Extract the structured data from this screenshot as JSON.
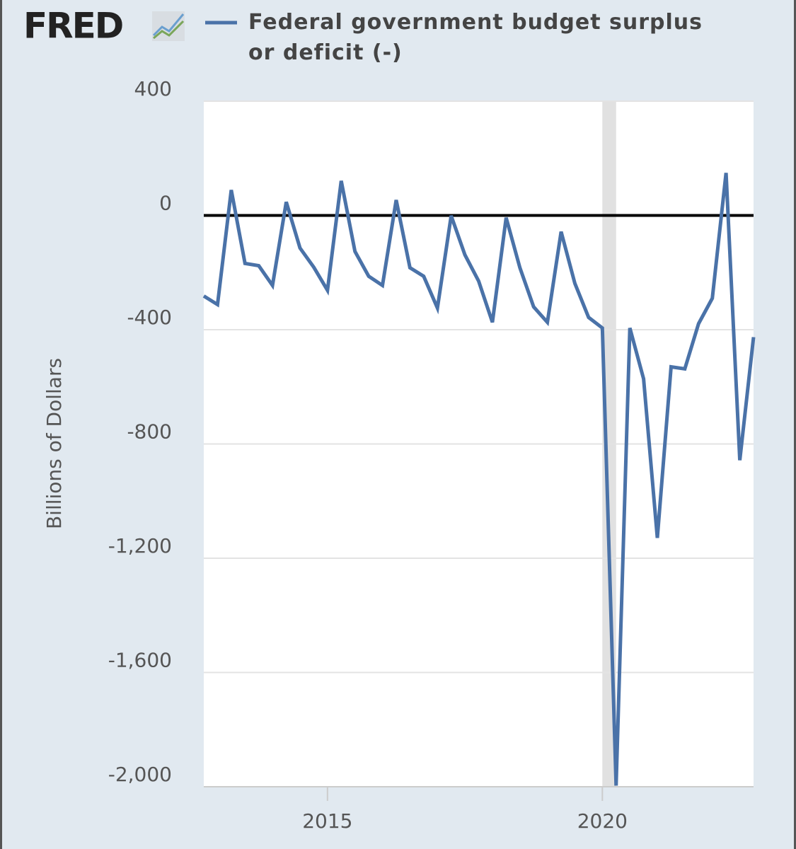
{
  "chart_data": {
    "type": "line",
    "logo": "FRED",
    "ylabel": "Billions of Dollars",
    "x": [
      2012.75,
      2013.0,
      2013.25,
      2013.5,
      2013.75,
      2014.0,
      2014.25,
      2014.5,
      2014.75,
      2015.0,
      2015.25,
      2015.5,
      2015.75,
      2016.0,
      2016.25,
      2016.5,
      2016.75,
      2017.0,
      2017.25,
      2017.5,
      2017.75,
      2018.0,
      2018.25,
      2018.5,
      2018.75,
      2019.0,
      2019.25,
      2019.5,
      2019.75,
      2020.0,
      2020.25,
      2020.5,
      2020.75,
      2021.0,
      2021.25,
      2021.5,
      2021.75,
      2022.0,
      2022.25,
      2022.5,
      2022.75
    ],
    "series": [
      {
        "name": "Federal government budget surplus or deficit (-)",
        "color": "#4a72a8",
        "values": [
          -282,
          -312,
          89,
          -168,
          -176,
          -245,
          47,
          -114,
          -181,
          -262,
          121,
          -126,
          -213,
          -245,
          54,
          -183,
          -213,
          -324,
          -1,
          -138,
          -230,
          -374,
          -8,
          -183,
          -320,
          -374,
          -57,
          -238,
          -357,
          -394,
          -1996,
          -394,
          -572,
          -1129,
          -530,
          -537,
          -379,
          -290,
          149,
          -857,
          -426
        ]
      }
    ],
    "xlim": [
      2012.75,
      2022.75
    ],
    "xticks": [
      2015,
      2020
    ],
    "ylim": [
      -2000,
      400
    ],
    "yticks": [
      400,
      0,
      -400,
      -800,
      {
        "value": -1200,
        "label": "-1,200"
      },
      {
        "value": -1600,
        "label": "-1,600"
      },
      {
        "value": -2000,
        "label": "-2,000"
      }
    ],
    "grid": true,
    "zero_line": true,
    "shading": [
      2020.0,
      2020.25
    ],
    "shading_color": "#e1e1e1"
  }
}
